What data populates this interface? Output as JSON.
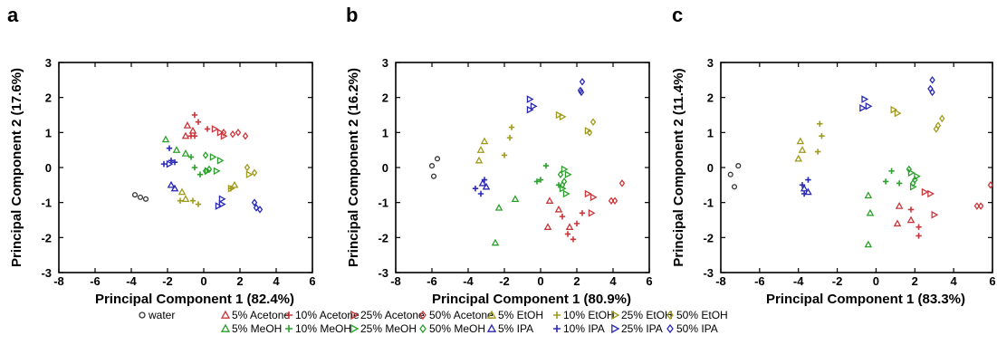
{
  "figure": {
    "background": "#ffffff"
  },
  "legend": {
    "items": [
      {
        "label": "water",
        "shape": "circle",
        "color": "#333333",
        "row": 0,
        "col": 0
      },
      {
        "label": "5% Acetone",
        "shape": "triangle",
        "color": "#c8373b",
        "row": 0,
        "col": 1
      },
      {
        "label": "10% Acetone",
        "shape": "plus",
        "color": "#c8373b",
        "row": 0,
        "col": 2
      },
      {
        "label": "25% Acetone",
        "shape": "rtri",
        "color": "#c8373b",
        "row": 0,
        "col": 3
      },
      {
        "label": "50% Acetone",
        "shape": "diamond",
        "color": "#c8373b",
        "row": 0,
        "col": 4
      },
      {
        "label": "5% MeOH",
        "shape": "triangle",
        "color": "#2ca02c",
        "row": 1,
        "col": 1
      },
      {
        "label": "10% MeOH",
        "shape": "plus",
        "color": "#2ca02c",
        "row": 1,
        "col": 2
      },
      {
        "label": "25% MeOH",
        "shape": "rtri",
        "color": "#2ca02c",
        "row": 1,
        "col": 3
      },
      {
        "label": "50% MeOH",
        "shape": "diamond",
        "color": "#2ca02c",
        "row": 1,
        "col": 4
      },
      {
        "label": "5% EtOH",
        "shape": "triangle",
        "color": "#a09a1e",
        "row": 0,
        "col": 5
      },
      {
        "label": "10% EtOH",
        "shape": "plus",
        "color": "#a09a1e",
        "row": 0,
        "col": 6
      },
      {
        "label": "25% EtOH",
        "shape": "rtri",
        "color": "#a09a1e",
        "row": 0,
        "col": 7
      },
      {
        "label": "50% EtOH",
        "shape": "diamond",
        "color": "#a09a1e",
        "row": 0,
        "col": 8
      },
      {
        "label": "5% IPA",
        "shape": "triangle",
        "color": "#2828b4",
        "row": 1,
        "col": 5
      },
      {
        "label": "10% IPA",
        "shape": "plus",
        "color": "#2828b4",
        "row": 1,
        "col": 6
      },
      {
        "label": "25% IPA",
        "shape": "rtri",
        "color": "#2828b4",
        "row": 1,
        "col": 7
      },
      {
        "label": "50% IPA",
        "shape": "diamond",
        "color": "#2828b4",
        "row": 1,
        "col": 8
      }
    ]
  },
  "chart_data": [
    {
      "type": "scatter",
      "panel_label": "a",
      "xlabel": "Principal Component 1 (82.4%)",
      "ylabel": "Principal Component 2 (17.6%)",
      "xlim": [
        -8,
        6
      ],
      "ylim": [
        -3,
        3
      ],
      "xticks": [
        -8,
        -6,
        -4,
        -2,
        0,
        2,
        4,
        6
      ],
      "yticks": [
        -3,
        -2,
        -1,
        0,
        1,
        2,
        3
      ],
      "grid": false,
      "series": [
        {
          "name": "water",
          "points": [
            [
              -3.8,
              -0.78
            ],
            [
              -3.5,
              -0.85
            ],
            [
              -3.2,
              -0.9
            ]
          ]
        },
        {
          "name": "5% Acetone",
          "points": [
            [
              -0.9,
              1.2
            ],
            [
              -0.6,
              1.05
            ],
            [
              -1.0,
              0.9
            ]
          ]
        },
        {
          "name": "10% Acetone",
          "points": [
            [
              -0.5,
              1.5
            ],
            [
              -0.3,
              1.3
            ],
            [
              0.2,
              1.1
            ],
            [
              -0.7,
              0.9
            ],
            [
              -0.5,
              0.9
            ]
          ]
        },
        {
          "name": "25% Acetone",
          "points": [
            [
              0.6,
              1.1
            ],
            [
              0.9,
              1.0
            ],
            [
              1.1,
              0.9
            ]
          ]
        },
        {
          "name": "50% Acetone",
          "points": [
            [
              1.1,
              1.0
            ],
            [
              1.6,
              0.95
            ],
            [
              1.9,
              1.0
            ],
            [
              2.3,
              0.9
            ]
          ]
        },
        {
          "name": "5% MeOH",
          "points": [
            [
              -2.1,
              0.8
            ],
            [
              -1.5,
              0.5
            ],
            [
              -1.0,
              0.4
            ]
          ]
        },
        {
          "name": "10% MeOH",
          "points": [
            [
              -0.7,
              0.3
            ],
            [
              -0.5,
              0.0
            ],
            [
              -0.2,
              -0.2
            ]
          ]
        },
        {
          "name": "25% MeOH",
          "points": [
            [
              0.5,
              0.3
            ],
            [
              0.9,
              0.2
            ],
            [
              0.7,
              -0.1
            ],
            [
              0.2,
              -0.1
            ]
          ]
        },
        {
          "name": "50% MeOH",
          "points": [
            [
              0.1,
              0.35
            ],
            [
              0.3,
              -0.05
            ],
            [
              0.1,
              -0.1
            ]
          ]
        },
        {
          "name": "5% EtOH",
          "points": [
            [
              -1.2,
              -0.7
            ],
            [
              -1.0,
              -0.9
            ],
            [
              1.7,
              -0.5
            ]
          ]
        },
        {
          "name": "10% EtOH",
          "points": [
            [
              -1.3,
              -0.95
            ],
            [
              -0.6,
              -0.95
            ],
            [
              -0.3,
              -1.05
            ],
            [
              1.5,
              -0.6
            ]
          ]
        },
        {
          "name": "25% EtOH",
          "points": [
            [
              1.5,
              -0.6
            ],
            [
              2.5,
              -0.2
            ]
          ]
        },
        {
          "name": "50% EtOH",
          "points": [
            [
              2.4,
              0.0
            ],
            [
              2.8,
              -0.15
            ]
          ]
        },
        {
          "name": "5% IPA",
          "points": [
            [
              -1.8,
              -0.5
            ],
            [
              -1.6,
              -0.6
            ]
          ]
        },
        {
          "name": "10% IPA",
          "points": [
            [
              -1.9,
              0.55
            ],
            [
              -1.8,
              0.2
            ],
            [
              -1.6,
              0.15
            ],
            [
              -2.2,
              0.1
            ]
          ]
        },
        {
          "name": "25% IPA",
          "points": [
            [
              -1.9,
              0.1
            ],
            [
              0.8,
              -1.1
            ],
            [
              1.0,
              -1.05
            ],
            [
              1.0,
              -0.9
            ]
          ]
        },
        {
          "name": "50% IPA",
          "points": [
            [
              2.8,
              -1.0
            ],
            [
              2.9,
              -1.15
            ],
            [
              3.1,
              -1.2
            ]
          ]
        }
      ]
    },
    {
      "type": "scatter",
      "panel_label": "b",
      "xlabel": "Principal Component 1 (80.9%)",
      "ylabel": "Principal Component 2 (16.2%)",
      "xlim": [
        -8,
        6
      ],
      "ylim": [
        -3,
        3
      ],
      "xticks": [
        -8,
        -6,
        -4,
        -2,
        0,
        2,
        4,
        6
      ],
      "yticks": [
        -3,
        -2,
        -1,
        0,
        1,
        2,
        3
      ],
      "grid": false,
      "series": [
        {
          "name": "water",
          "points": [
            [
              -6.0,
              0.05
            ],
            [
              -5.7,
              0.25
            ],
            [
              -5.9,
              -0.25
            ]
          ]
        },
        {
          "name": "5% Acetone",
          "points": [
            [
              0.5,
              -0.95
            ],
            [
              1.0,
              -1.2
            ],
            [
              0.4,
              -1.7
            ],
            [
              1.6,
              -1.7
            ]
          ]
        },
        {
          "name": "10% Acetone",
          "points": [
            [
              1.2,
              -1.4
            ],
            [
              1.5,
              -1.9
            ],
            [
              1.8,
              -2.05
            ],
            [
              2.0,
              -1.6
            ],
            [
              2.3,
              -1.3
            ]
          ]
        },
        {
          "name": "25% Acetone",
          "points": [
            [
              2.6,
              -0.75
            ],
            [
              2.9,
              -0.85
            ],
            [
              2.8,
              -1.3
            ]
          ]
        },
        {
          "name": "50% Acetone",
          "points": [
            [
              3.9,
              -0.95
            ],
            [
              4.1,
              -0.95
            ],
            [
              4.5,
              -0.45
            ]
          ]
        },
        {
          "name": "5% MeOH",
          "points": [
            [
              -2.3,
              -1.15
            ],
            [
              -1.4,
              -0.9
            ],
            [
              -2.5,
              -2.15
            ]
          ]
        },
        {
          "name": "10% MeOH",
          "points": [
            [
              0.3,
              0.05
            ],
            [
              0.0,
              -0.35
            ],
            [
              1.0,
              -0.5
            ],
            [
              -0.2,
              -0.4
            ]
          ]
        },
        {
          "name": "25% MeOH",
          "points": [
            [
              1.3,
              -0.05
            ],
            [
              1.5,
              -0.2
            ],
            [
              1.2,
              -0.6
            ],
            [
              1.4,
              -0.75
            ]
          ]
        },
        {
          "name": "50% MeOH",
          "points": [
            [
              1.1,
              -0.2
            ],
            [
              1.3,
              -0.4
            ],
            [
              1.2,
              -0.5
            ]
          ]
        },
        {
          "name": "5% EtOH",
          "points": [
            [
              -3.1,
              0.75
            ],
            [
              -3.3,
              0.5
            ],
            [
              -3.4,
              0.2
            ]
          ]
        },
        {
          "name": "10% EtOH",
          "points": [
            [
              -1.6,
              1.15
            ],
            [
              -1.7,
              0.85
            ],
            [
              -2.0,
              0.35
            ]
          ]
        },
        {
          "name": "25% EtOH",
          "points": [
            [
              1.0,
              1.5
            ],
            [
              1.2,
              1.45
            ],
            [
              2.6,
              1.05
            ]
          ]
        },
        {
          "name": "50% EtOH",
          "points": [
            [
              2.9,
              1.3
            ],
            [
              2.7,
              1.0
            ]
          ]
        },
        {
          "name": "5% IPA",
          "points": [
            [
              -3.2,
              -0.45
            ],
            [
              -3.0,
              -0.55
            ]
          ]
        },
        {
          "name": "10% IPA",
          "points": [
            [
              -3.6,
              -0.6
            ],
            [
              -3.3,
              -0.75
            ],
            [
              -3.1,
              -0.35
            ]
          ]
        },
        {
          "name": "25% IPA",
          "points": [
            [
              -0.6,
              1.95
            ],
            [
              -0.4,
              1.75
            ],
            [
              -0.6,
              1.65
            ]
          ]
        },
        {
          "name": "50% IPA",
          "points": [
            [
              2.3,
              2.45
            ],
            [
              2.2,
              2.2
            ],
            [
              2.25,
              2.15
            ]
          ]
        }
      ]
    },
    {
      "type": "scatter",
      "panel_label": "c",
      "xlabel": "Principal Component 1 (83.3%)",
      "ylabel": "Principal Component 2 (11.4%)",
      "xlim": [
        -8,
        6
      ],
      "ylim": [
        -3,
        3
      ],
      "xticks": [
        -8,
        -6,
        -4,
        -2,
        0,
        2,
        4,
        6
      ],
      "yticks": [
        -3,
        -2,
        -1,
        0,
        1,
        2,
        3
      ],
      "grid": false,
      "series": [
        {
          "name": "water",
          "points": [
            [
              -7.5,
              -0.2
            ],
            [
              -7.1,
              0.05
            ],
            [
              -7.3,
              -0.55
            ]
          ]
        },
        {
          "name": "5% Acetone",
          "points": [
            [
              1.2,
              -1.1
            ],
            [
              1.1,
              -1.6
            ],
            [
              1.8,
              -1.5
            ]
          ]
        },
        {
          "name": "10% Acetone",
          "points": [
            [
              1.8,
              -1.2
            ],
            [
              2.2,
              -1.7
            ],
            [
              2.2,
              -1.95
            ]
          ]
        },
        {
          "name": "25% Acetone",
          "points": [
            [
              2.5,
              -0.7
            ],
            [
              2.8,
              -0.75
            ],
            [
              3.0,
              -1.35
            ]
          ]
        },
        {
          "name": "50% Acetone",
          "points": [
            [
              5.2,
              -1.1
            ],
            [
              5.4,
              -1.1
            ],
            [
              5.9,
              -0.5
            ]
          ]
        },
        {
          "name": "5% MeOH",
          "points": [
            [
              -0.4,
              -0.8
            ],
            [
              -0.3,
              -1.3
            ],
            [
              -0.4,
              -2.2
            ]
          ]
        },
        {
          "name": "10% MeOH",
          "points": [
            [
              0.8,
              -0.1
            ],
            [
              0.5,
              -0.4
            ],
            [
              1.2,
              -0.45
            ]
          ]
        },
        {
          "name": "25% MeOH",
          "points": [
            [
              1.8,
              -0.15
            ],
            [
              2.1,
              -0.25
            ],
            [
              1.9,
              -0.55
            ]
          ]
        },
        {
          "name": "50% MeOH",
          "points": [
            [
              1.7,
              -0.05
            ],
            [
              2.0,
              -0.35
            ],
            [
              1.9,
              -0.45
            ]
          ]
        },
        {
          "name": "5% EtOH",
          "points": [
            [
              -3.9,
              0.75
            ],
            [
              -3.8,
              0.5
            ],
            [
              -4.0,
              0.25
            ]
          ]
        },
        {
          "name": "10% EtOH",
          "points": [
            [
              -2.9,
              1.25
            ],
            [
              -2.8,
              0.9
            ],
            [
              -3.0,
              0.45
            ]
          ]
        },
        {
          "name": "25% EtOH",
          "points": [
            [
              0.9,
              1.65
            ],
            [
              1.1,
              1.55
            ]
          ]
        },
        {
          "name": "50% EtOH",
          "points": [
            [
              3.4,
              1.4
            ],
            [
              3.2,
              1.2
            ],
            [
              3.1,
              1.1
            ]
          ]
        },
        {
          "name": "5% IPA",
          "points": [
            [
              -3.7,
              -0.6
            ],
            [
              -3.5,
              -0.7
            ]
          ]
        },
        {
          "name": "10% IPA",
          "points": [
            [
              -3.8,
              -0.5
            ],
            [
              -3.7,
              -0.75
            ],
            [
              -3.5,
              -0.35
            ]
          ]
        },
        {
          "name": "25% IPA",
          "points": [
            [
              -0.6,
              1.95
            ],
            [
              -0.4,
              1.75
            ],
            [
              -0.7,
              1.7
            ]
          ]
        },
        {
          "name": "50% IPA",
          "points": [
            [
              2.9,
              2.5
            ],
            [
              2.8,
              2.25
            ],
            [
              2.9,
              2.15
            ]
          ]
        }
      ]
    }
  ]
}
